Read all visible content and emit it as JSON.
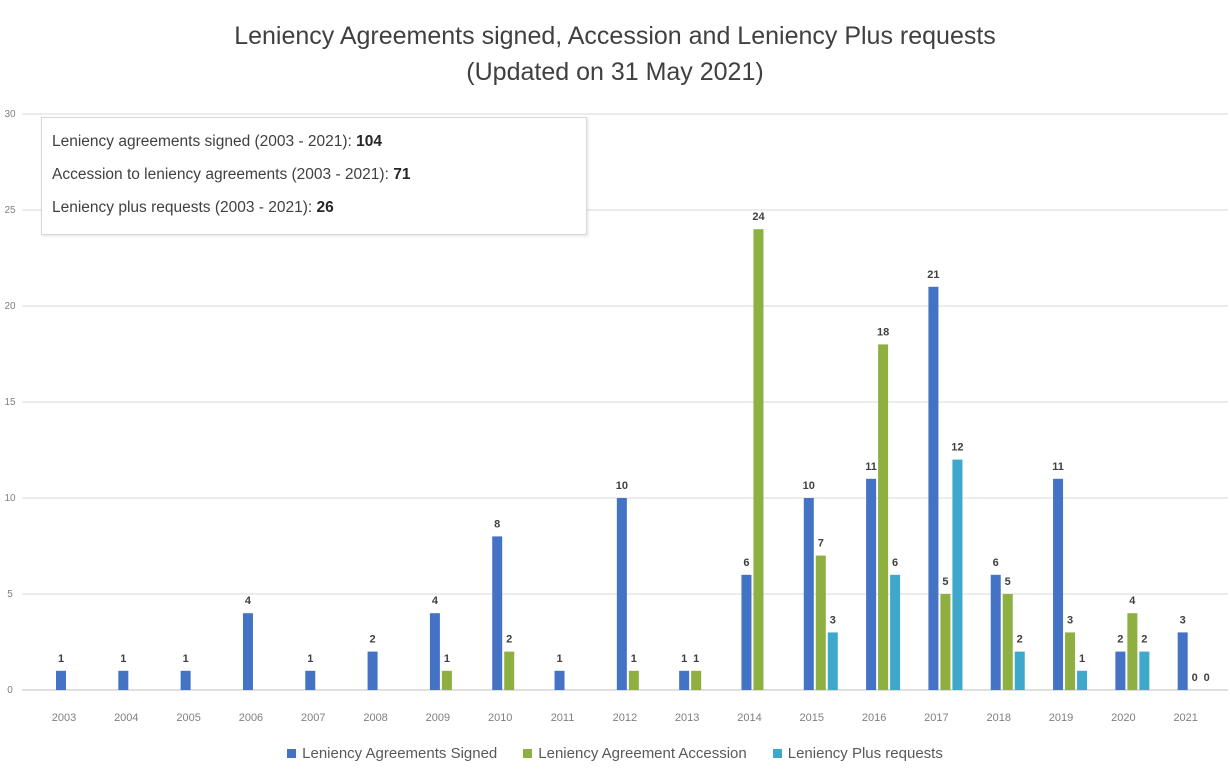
{
  "title": {
    "line1": "Leniency Agreements signed, Accession and Leniency Plus requests",
    "line2": "(Updated on 31 May 2021)"
  },
  "info_box": {
    "line1_label": "Leniency agreements signed (2003 - 2021): ",
    "line1_value": "104",
    "line2_label": "Accession to leniency agreements (2003 - 2021): ",
    "line2_value": "71",
    "line3_label": "Leniency plus requests (2003 - 2021): ",
    "line3_value": "26"
  },
  "colors": {
    "signed": "#4472c4",
    "accession": "#8db040",
    "plus": "#3ea8cc",
    "grid": "#d9d9d9",
    "text": "#404040"
  },
  "chart_data": {
    "type": "bar",
    "title": "Leniency Agreements signed, Accession and Leniency Plus requests",
    "subtitle": "(Updated on 31 May 2021)",
    "xlabel": "",
    "ylabel": "",
    "ylim": [
      0,
      30
    ],
    "yticks": [
      "0",
      "5",
      "10",
      "15",
      "20",
      "25",
      "30"
    ],
    "grid": true,
    "legend_position": "bottom",
    "categories": [
      "2003",
      "2004",
      "2005",
      "2006",
      "2007",
      "2008",
      "2009",
      "2010",
      "2011",
      "2012",
      "2013",
      "2014",
      "2015",
      "2016",
      "2017",
      "2018",
      "2019",
      "2020",
      "2021"
    ],
    "series": [
      {
        "name": "Leniency Agreements Signed",
        "key": "signed",
        "values": [
          1,
          1,
          1,
          4,
          1,
          2,
          4,
          8,
          1,
          10,
          1,
          6,
          10,
          11,
          21,
          6,
          11,
          2,
          3
        ],
        "labels": [
          "1",
          "1",
          "1",
          "4",
          "1",
          "2",
          "4",
          "8",
          "1",
          "10",
          "1",
          "6",
          "10",
          "11",
          "21",
          "6",
          "11",
          "2",
          "3"
        ]
      },
      {
        "name": "Leniency Agreement Accession",
        "key": "accession",
        "values": [
          0,
          0,
          0,
          0,
          0,
          0,
          1,
          2,
          0,
          1,
          1,
          24,
          7,
          18,
          5,
          5,
          3,
          4,
          0
        ],
        "labels": [
          "",
          "",
          "",
          "",
          "",
          "",
          "1",
          "2",
          "",
          "1",
          "1",
          "24",
          "7",
          "18",
          "5",
          "5",
          "3",
          "4",
          "0"
        ]
      },
      {
        "name": "Leniency Plus requests",
        "key": "plus",
        "values": [
          0,
          0,
          0,
          0,
          0,
          0,
          0,
          0,
          0,
          0,
          0,
          0,
          3,
          6,
          12,
          2,
          1,
          2,
          0
        ],
        "labels": [
          "",
          "",
          "",
          "",
          "",
          "",
          "",
          "",
          "",
          "",
          "",
          "",
          "3",
          "6",
          "12",
          "2",
          "1",
          "2",
          "0"
        ]
      }
    ]
  }
}
